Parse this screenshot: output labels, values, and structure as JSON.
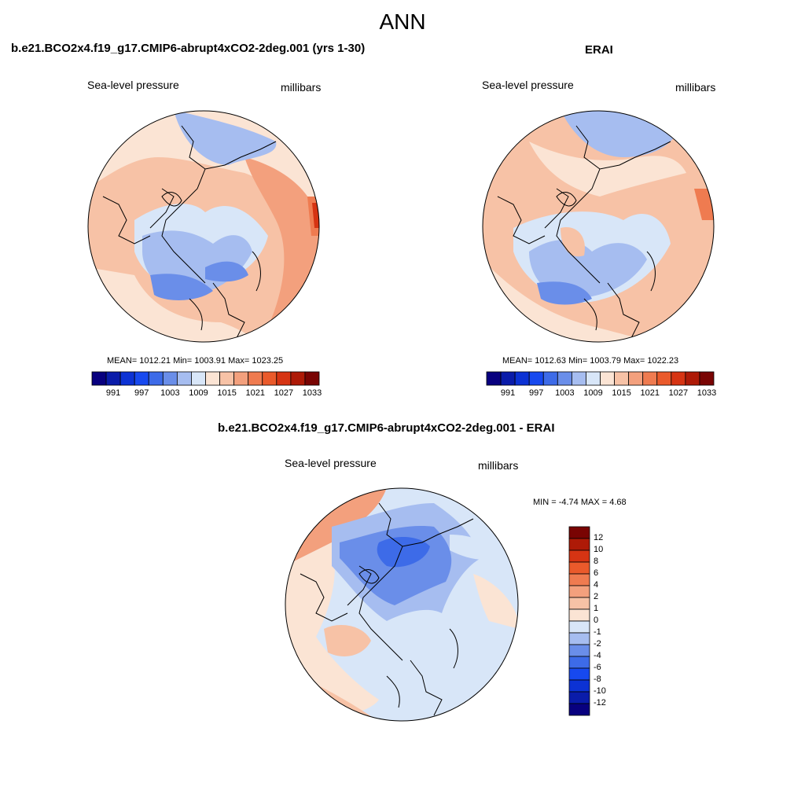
{
  "main_title": "ANN",
  "variable": "Sea-level pressure",
  "units": "millibars",
  "panels": [
    {
      "id": "model",
      "title": "b.e21.BCO2x4.f19_g17.CMIP6-abrupt4xCO2-2deg.001 (yrs 1-30)",
      "stats": {
        "mean": "1012.21",
        "min": "1003.91",
        "max": "1023.25"
      },
      "stats_text": "MEAN= 1012.21  Min= 1003.91  Max= 1023.25"
    },
    {
      "id": "obs",
      "title": "ERAI",
      "stats": {
        "mean": "1012.63",
        "min": "1003.79",
        "max": "1022.23"
      },
      "stats_text": "MEAN= 1012.63  Min= 1003.79  Max= 1022.23"
    },
    {
      "id": "diff",
      "title": "b.e21.BCO2x4.f19_g17.CMIP6-abrupt4xCO2-2deg.001 - ERAI",
      "stats": {
        "min": "-4.74",
        "max": "4.68"
      },
      "stats_text": "MIN =  -4.74 MAX =   4.68"
    }
  ],
  "abs_colorbar": {
    "labels": [
      "991",
      "997",
      "1003",
      "1009",
      "1015",
      "1021",
      "1027",
      "1033"
    ],
    "colors": [
      "#08007f",
      "#0a1caa",
      "#0c32d4",
      "#1749ef",
      "#3d6be8",
      "#6a8ee9",
      "#a6bdf0",
      "#d8e6f8",
      "#fbe4d4",
      "#f7c2a6",
      "#f3a07d",
      "#ef7b50",
      "#ea5a2b",
      "#d63413",
      "#ae1a07",
      "#790403"
    ]
  },
  "diff_colorbar": {
    "labels": [
      "12",
      "10",
      "8",
      "6",
      "4",
      "2",
      "1",
      "0",
      "-1",
      "-2",
      "-4",
      "-6",
      "-8",
      "-10",
      "-12"
    ],
    "colors": [
      "#790403",
      "#ae1a07",
      "#d63413",
      "#ea5a2b",
      "#ef7b50",
      "#f3a07d",
      "#f7c2a6",
      "#fbe4d4",
      "#d8e6f8",
      "#a6bdf0",
      "#6a8ee9",
      "#3d6be8",
      "#1749ef",
      "#0c32d4",
      "#0a1caa",
      "#08007f"
    ]
  },
  "palette": {
    "land_outline": "#000000",
    "neutral_warm": "#fbe4d4",
    "neutral_cool": "#d8e6f8"
  }
}
